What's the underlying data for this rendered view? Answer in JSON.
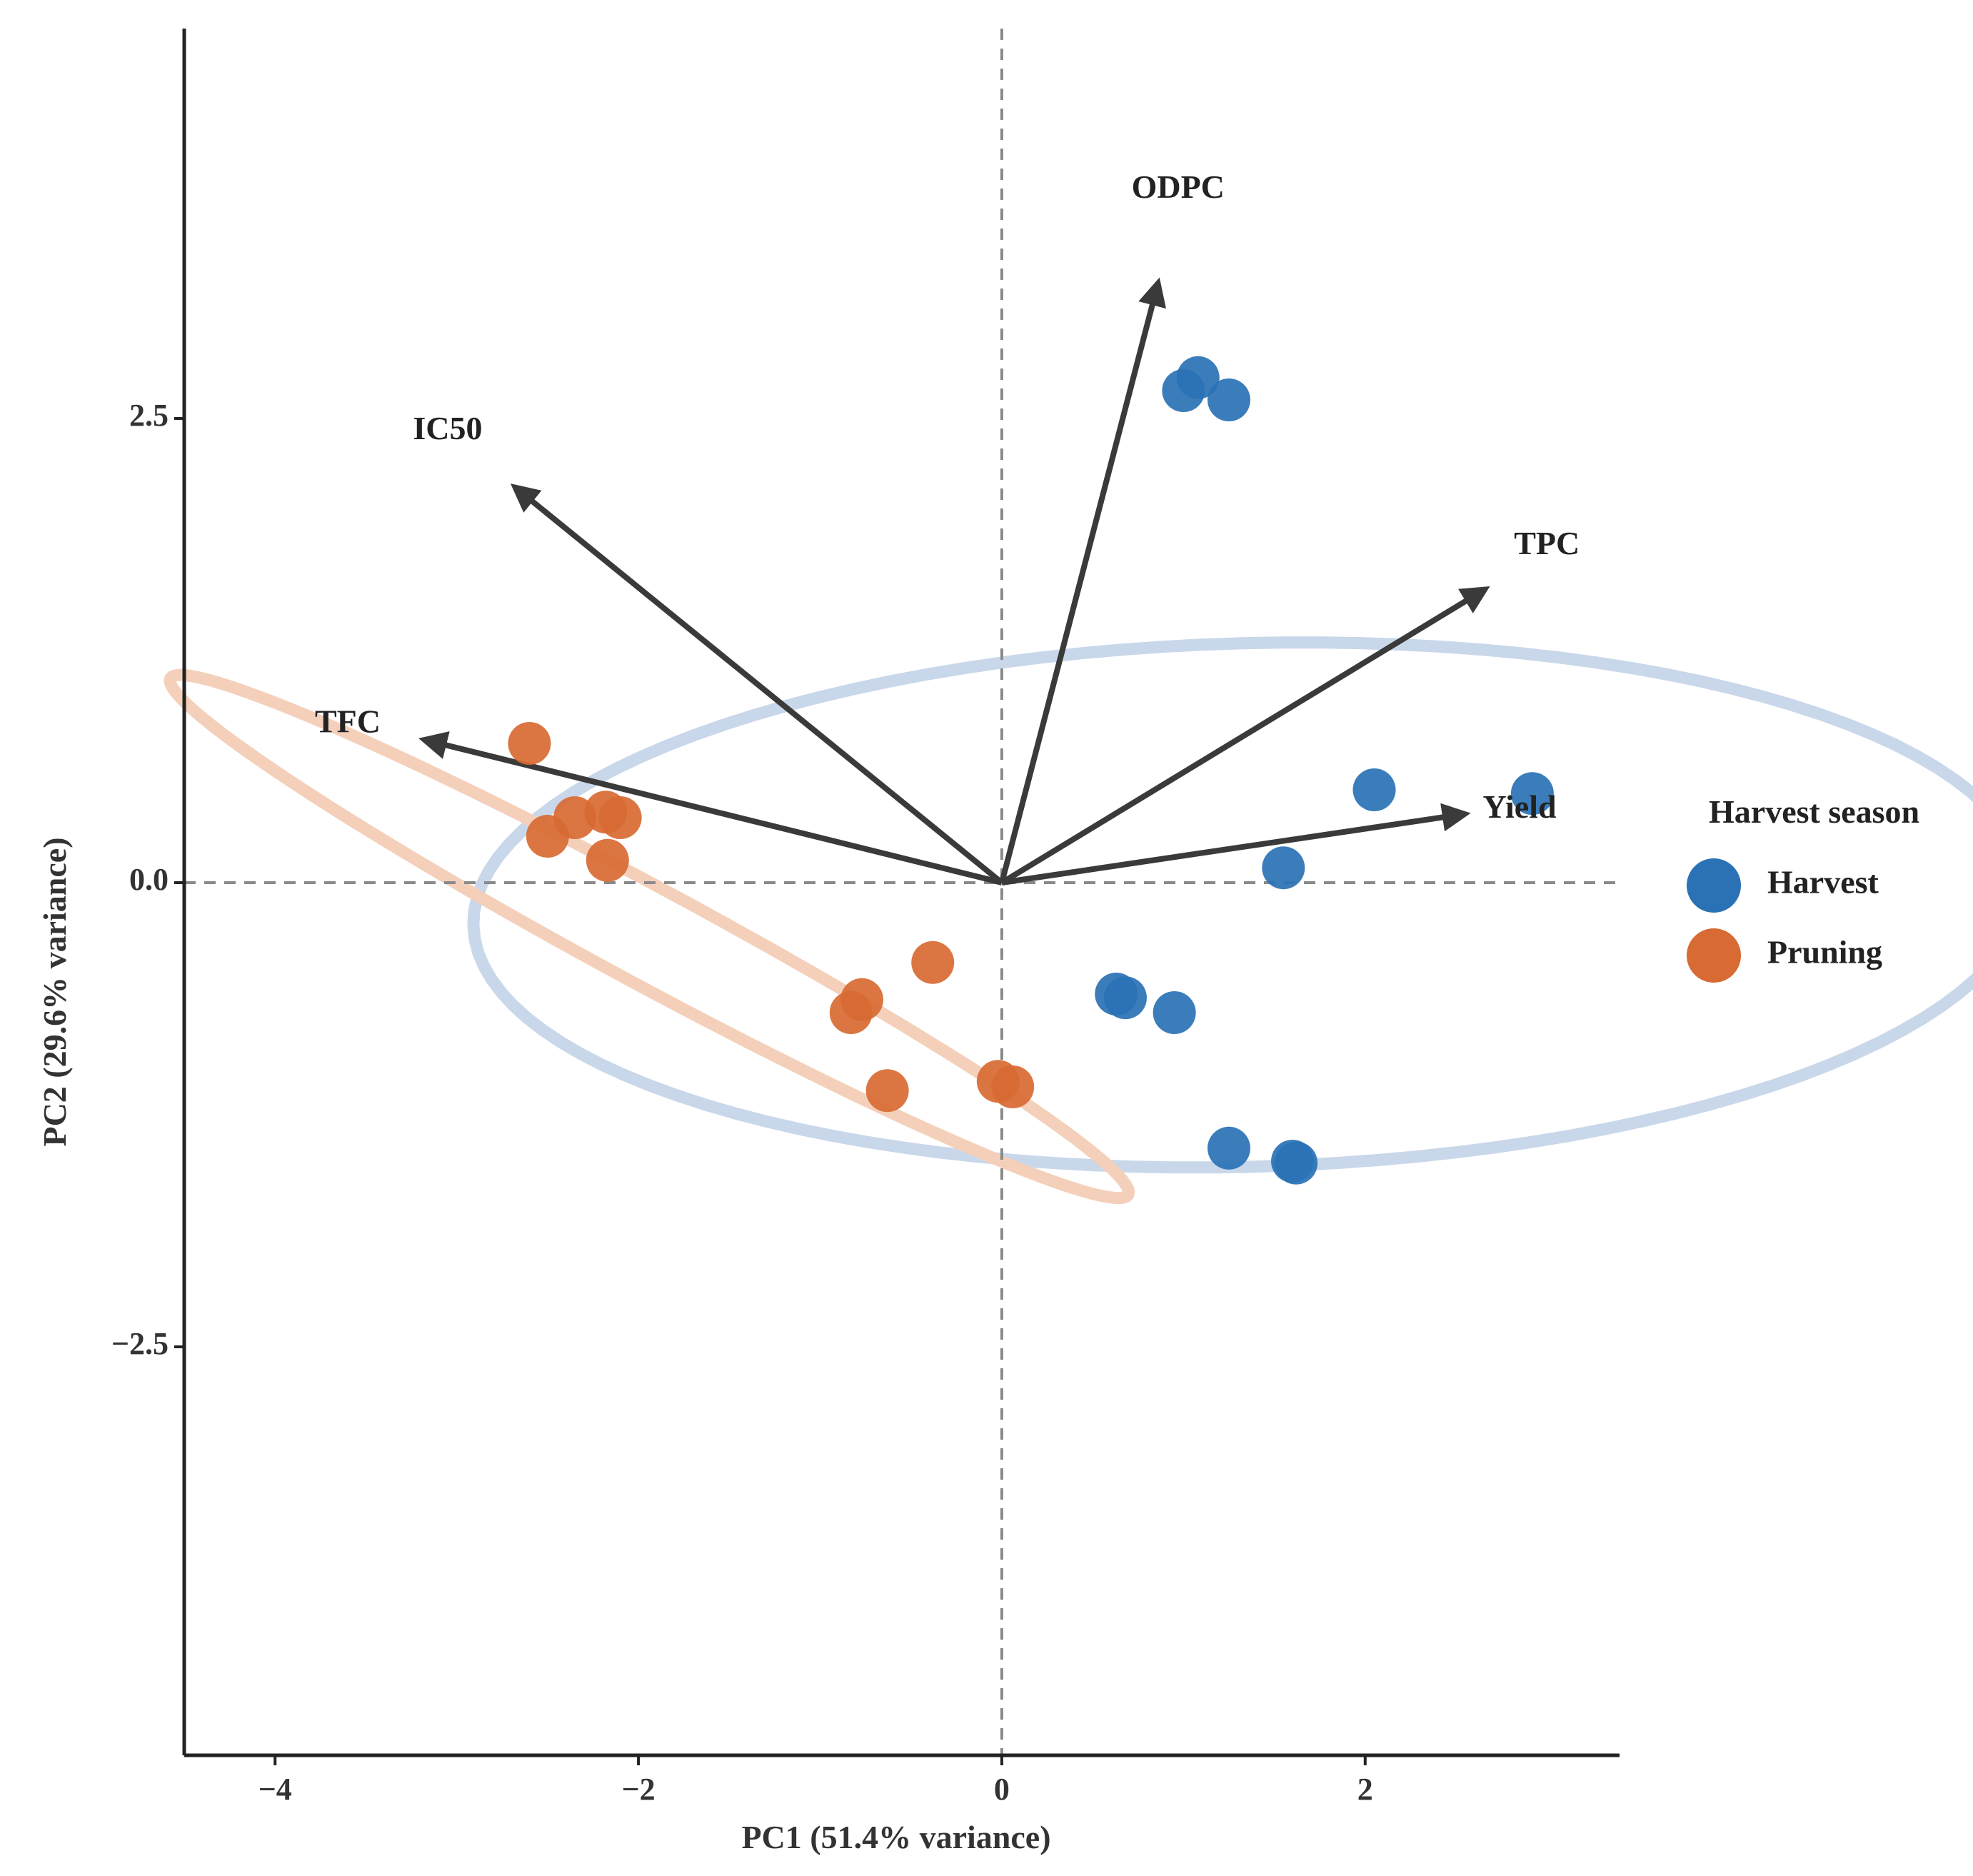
{
  "chart_data": {
    "type": "scatter",
    "subtype": "pca-biplot",
    "xlabel": "PC1 (51.4% variance)",
    "ylabel": "PC2 (29.6% variance)",
    "xlim": [
      -4.5,
      3.4
    ],
    "ylim": [
      -4.7,
      4.6
    ],
    "x_ticks": [
      -4,
      -2,
      0,
      2
    ],
    "x_tick_labels": [
      "−4",
      "−2",
      "0",
      "2"
    ],
    "y_ticks": [
      2.5,
      0.0,
      -2.5
    ],
    "y_tick_labels": [
      "2.5",
      "0.0",
      "−2.5"
    ],
    "reference_lines": {
      "x": 0,
      "y": 0,
      "style": "dashed"
    },
    "legend": {
      "title": "Harvest season",
      "position": "right",
      "entries": [
        {
          "label": "Harvest",
          "color": "#2a72b5"
        },
        {
          "label": "Pruning",
          "color": "#d86a33"
        }
      ]
    },
    "series": [
      {
        "name": "Harvest",
        "color": "#2a72b5",
        "points": [
          [
            1.0,
            2.65
          ],
          [
            1.08,
            2.72
          ],
          [
            1.25,
            2.6
          ],
          [
            2.05,
            0.5
          ],
          [
            2.92,
            0.48
          ],
          [
            1.55,
            0.08
          ],
          [
            0.63,
            -0.6
          ],
          [
            0.68,
            -0.62
          ],
          [
            0.95,
            -0.7
          ],
          [
            1.25,
            -1.43
          ],
          [
            1.6,
            -1.5
          ],
          [
            1.62,
            -1.51
          ]
        ]
      },
      {
        "name": "Pruning",
        "color": "#d86a33",
        "points": [
          [
            -2.6,
            0.75
          ],
          [
            -2.5,
            0.25
          ],
          [
            -2.35,
            0.35
          ],
          [
            -2.18,
            0.38
          ],
          [
            -2.1,
            0.35
          ],
          [
            -2.17,
            0.12
          ],
          [
            -0.38,
            -0.43
          ],
          [
            -0.77,
            -0.63
          ],
          [
            -0.83,
            -0.7
          ],
          [
            -0.63,
            -1.12
          ],
          [
            -0.02,
            -1.07
          ],
          [
            0.06,
            -1.1
          ]
        ]
      }
    ],
    "ellipses": [
      {
        "group": "Harvest",
        "color": "#c9d7ea",
        "center": [
          1.36,
          -0.12
        ],
        "semi_axes": [
          1.41,
          4.27
        ],
        "angle_deg": -88.5
      },
      {
        "group": "Pruning",
        "color": "#f4d0ba",
        "center": [
          -1.94,
          -0.29
        ],
        "semi_axes": [
          2.98,
          0.26
        ],
        "angle_deg": -27.8
      }
    ],
    "vectors": [
      {
        "label": "ODPC",
        "x": 0.86,
        "y": 3.23,
        "label_x": 0.97,
        "label_y": 3.73
      },
      {
        "label": "IC50",
        "x": -2.68,
        "y": 2.13,
        "label_x": -3.05,
        "label_y": 2.43
      },
      {
        "label": "TPC",
        "x": 2.66,
        "y": 1.58,
        "label_x": 3.0,
        "label_y": 1.81
      },
      {
        "label": "TFC",
        "x": -3.18,
        "y": 0.77,
        "label_x": -3.6,
        "label_y": 0.85
      },
      {
        "label": "Yield",
        "x": 2.55,
        "y": 0.37,
        "label_x": 2.85,
        "label_y": 0.39
      }
    ],
    "vector_color": "#3a3a3a"
  }
}
